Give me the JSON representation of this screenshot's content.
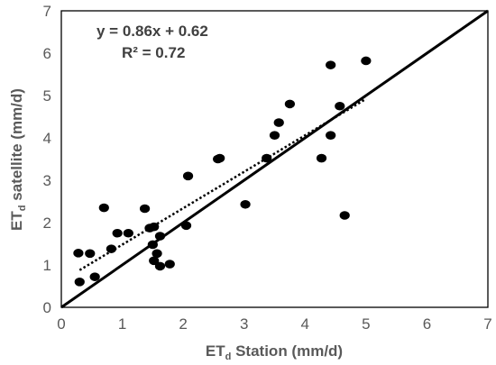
{
  "chart_data": {
    "type": "scatter",
    "xlabel": {
      "base": "ET",
      "sub": "d",
      "rest": " Station (mm/d)"
    },
    "ylabel": {
      "base": "ET",
      "sub": "d",
      "rest": " satellite (mm/d)"
    },
    "xlim": [
      0,
      7
    ],
    "ylim": [
      0,
      7
    ],
    "xticks": [
      "0",
      "1",
      "2",
      "3",
      "4",
      "5",
      "6",
      "7"
    ],
    "yticks": [
      "0",
      "1",
      "2",
      "3",
      "4",
      "5",
      "6",
      "7"
    ],
    "annotations": {
      "equation": "y = 0.86x + 0.62",
      "r2": "R² = 0.72"
    },
    "colors": {
      "points": "#000000",
      "lines": "#000000",
      "text": "#595959"
    },
    "reference_line": {
      "type": "1:1",
      "from": [
        0,
        0
      ],
      "to": [
        7,
        7
      ],
      "style": "solid"
    },
    "trendline": {
      "slope": 0.86,
      "intercept": 0.62,
      "x_range": [
        0.3,
        5.0
      ],
      "style": "dotted"
    },
    "points": [
      {
        "x": 0.28,
        "y": 1.28
      },
      {
        "x": 0.3,
        "y": 0.6
      },
      {
        "x": 0.47,
        "y": 1.27
      },
      {
        "x": 0.55,
        "y": 0.72
      },
      {
        "x": 0.7,
        "y": 2.35
      },
      {
        "x": 0.82,
        "y": 1.38
      },
      {
        "x": 0.92,
        "y": 1.75
      },
      {
        "x": 1.1,
        "y": 1.75
      },
      {
        "x": 1.37,
        "y": 2.33
      },
      {
        "x": 1.45,
        "y": 1.87
      },
      {
        "x": 1.5,
        "y": 1.48
      },
      {
        "x": 1.52,
        "y": 1.9
      },
      {
        "x": 1.52,
        "y": 1.1
      },
      {
        "x": 1.57,
        "y": 1.27
      },
      {
        "x": 1.62,
        "y": 1.68
      },
      {
        "x": 1.62,
        "y": 0.97
      },
      {
        "x": 1.78,
        "y": 1.02
      },
      {
        "x": 2.05,
        "y": 1.93
      },
      {
        "x": 2.08,
        "y": 3.1
      },
      {
        "x": 2.57,
        "y": 3.5
      },
      {
        "x": 2.6,
        "y": 3.52
      },
      {
        "x": 3.02,
        "y": 2.43
      },
      {
        "x": 3.37,
        "y": 3.52
      },
      {
        "x": 3.5,
        "y": 4.06
      },
      {
        "x": 3.57,
        "y": 4.36
      },
      {
        "x": 3.75,
        "y": 4.8
      },
      {
        "x": 4.27,
        "y": 3.52
      },
      {
        "x": 4.42,
        "y": 5.72
      },
      {
        "x": 4.42,
        "y": 4.06
      },
      {
        "x": 4.57,
        "y": 4.75
      },
      {
        "x": 4.65,
        "y": 2.17
      },
      {
        "x": 5.0,
        "y": 5.82
      }
    ]
  }
}
